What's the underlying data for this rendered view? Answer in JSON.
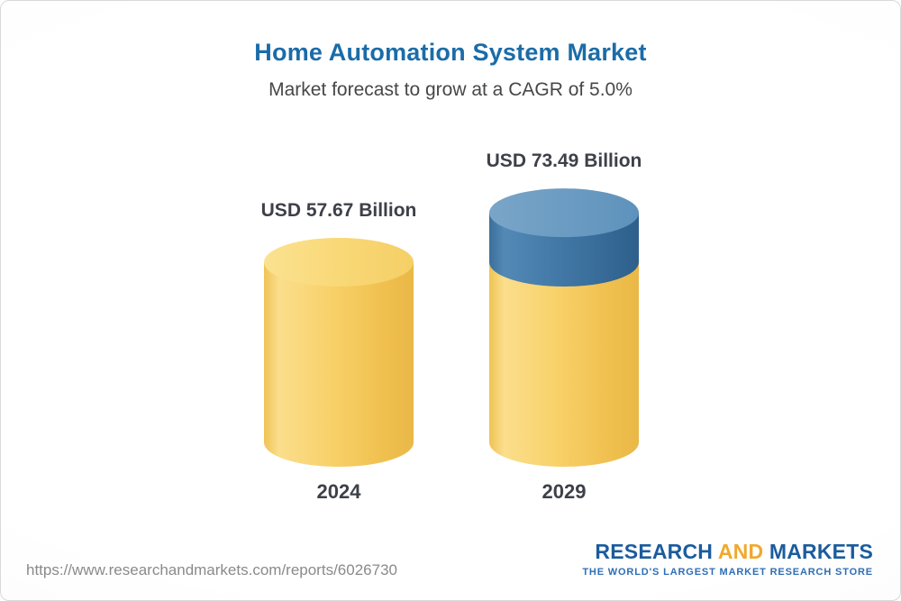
{
  "page": {
    "title": "Home Automation System Market",
    "subtitle": "Market forecast to grow at a CAGR of 5.0%"
  },
  "footer": {
    "url": "https://www.researchandmarkets.com/reports/6026730",
    "logo": {
      "part1": "RESEARCH",
      "part2": "AND",
      "part3": "MARKETS",
      "tagline": "THE WORLD'S LARGEST MARKET RESEARCH STORE"
    }
  },
  "chart_data": {
    "type": "bar",
    "title": "Home Automation System Market",
    "subtitle": "Market forecast to grow at a CAGR of 5.0%",
    "cagr_percent": 5.0,
    "categories": [
      "2024",
      "2029"
    ],
    "values": [
      57.67,
      73.49
    ],
    "value_labels": [
      "USD 57.67 Billion",
      "USD 73.49 Billion"
    ],
    "unit": "USD Billion",
    "xlabel": "",
    "ylabel": "",
    "legend": "none",
    "grid": false,
    "colors": {
      "bar_base": "#F6CE5D",
      "bar_growth_cap": "#3F77A5",
      "title": "#1B6CA8"
    },
    "notes": "3D cylinder pictogram chart; no axes shown. The 2029 cylinder shows the growth increment over the 2024 value (57.67) as a blue cap on top of the yellow base."
  }
}
